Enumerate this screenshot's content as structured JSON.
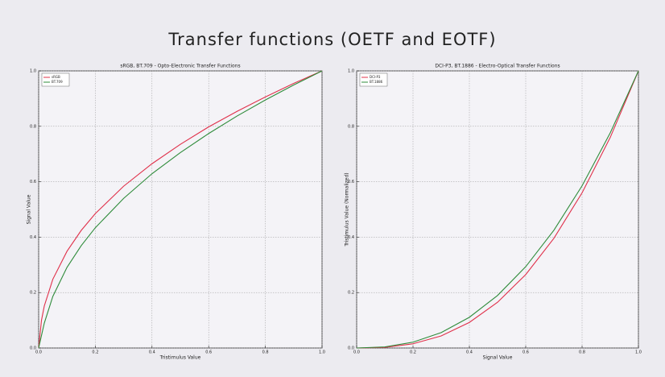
{
  "title": "Transfer functions (OETF and EOTF)",
  "chart_data": [
    {
      "type": "line",
      "title": "sRGB, BT.709 - Opto-Electronic Transfer Functions",
      "x_label": "Tristimulus Value",
      "y_label": "Signal Value",
      "x": [
        0,
        0.01,
        0.02,
        0.05,
        0.1,
        0.15,
        0.2,
        0.3,
        0.4,
        0.5,
        0.6,
        0.7,
        0.8,
        0.9,
        1
      ],
      "series": [
        {
          "name": "sRGB",
          "color": "#e0304a",
          "values": [
            0,
            0.0999,
            0.152,
            0.248,
            0.349,
            0.424,
            0.485,
            0.584,
            0.665,
            0.735,
            0.798,
            0.854,
            0.906,
            0.955,
            1
          ]
        },
        {
          "name": "BT.709",
          "color": "#2e8b3a",
          "values": [
            0,
            0.045,
            0.09,
            0.186,
            0.291,
            0.369,
            0.434,
            0.54,
            0.629,
            0.705,
            0.774,
            0.837,
            0.895,
            0.949,
            1
          ]
        }
      ],
      "xlim": [
        0,
        1
      ],
      "ylim": [
        0,
        1
      ],
      "xticks": [
        {
          "value": 0,
          "label": "0.0"
        },
        {
          "value": 0.2,
          "label": "0.2"
        },
        {
          "value": 0.4,
          "label": "0.4"
        },
        {
          "value": 0.6,
          "label": "0.6"
        },
        {
          "value": 0.8,
          "label": "0.8"
        },
        {
          "value": 1,
          "label": "1.0"
        }
      ],
      "yticks": [
        {
          "value": 0,
          "label": "0.0"
        },
        {
          "value": 0.2,
          "label": "0.2"
        },
        {
          "value": 0.4,
          "label": "0.4"
        },
        {
          "value": 0.6,
          "label": "0.6"
        },
        {
          "value": 0.8,
          "label": "0.8"
        },
        {
          "value": 1,
          "label": "1.0"
        }
      ],
      "grid": true,
      "legend": "upper-left"
    },
    {
      "type": "line",
      "title": "DCI-P3, BT.1886 - Electro-Optical Transfer Functions",
      "x_label": "Signal Value",
      "y_label": "Tristimulus Value (Normalized)",
      "x": [
        0,
        0.1,
        0.2,
        0.3,
        0.4,
        0.5,
        0.6,
        0.7,
        0.8,
        0.9,
        1
      ],
      "series": [
        {
          "name": "DCI-P3",
          "color": "#e0304a",
          "values": [
            0,
            0.0025,
            0.0152,
            0.0437,
            0.0923,
            0.165,
            0.265,
            0.396,
            0.56,
            0.76,
            1
          ]
        },
        {
          "name": "BT.1886",
          "color": "#2e8b3a",
          "values": [
            0,
            0.004,
            0.021,
            0.0556,
            0.1109,
            0.1895,
            0.2935,
            0.4249,
            0.5854,
            0.7765,
            1
          ]
        }
      ],
      "xlim": [
        0,
        1
      ],
      "ylim": [
        0,
        1
      ],
      "xticks": [
        {
          "value": 0,
          "label": "0.0"
        },
        {
          "value": 0.2,
          "label": "0.2"
        },
        {
          "value": 0.4,
          "label": "0.4"
        },
        {
          "value": 0.6,
          "label": "0.6"
        },
        {
          "value": 0.8,
          "label": "0.8"
        },
        {
          "value": 1,
          "label": "1.0"
        }
      ],
      "yticks": [
        {
          "value": 0,
          "label": "0.0"
        },
        {
          "value": 0.2,
          "label": "0.2"
        },
        {
          "value": 0.4,
          "label": "0.4"
        },
        {
          "value": 0.6,
          "label": "0.6"
        },
        {
          "value": 0.8,
          "label": "0.8"
        },
        {
          "value": 1,
          "label": "1.0"
        }
      ],
      "grid": true,
      "legend": "upper-left"
    }
  ]
}
